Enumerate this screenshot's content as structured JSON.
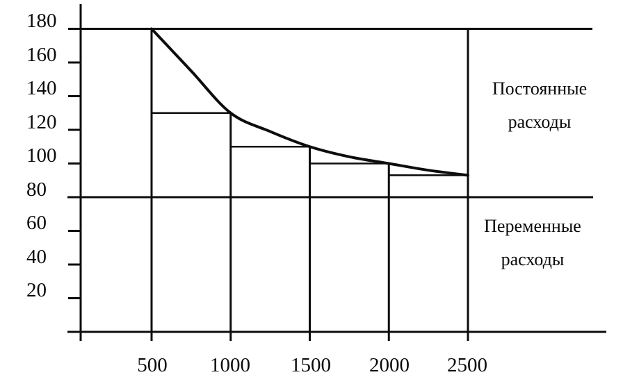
{
  "colors": {
    "ink": "#0d0d0d",
    "background": "#ffffff"
  },
  "chart_data": {
    "type": "line",
    "title": "",
    "xlabel": "",
    "ylabel": "",
    "grid": false,
    "legend": null,
    "xlim": [
      0,
      3400
    ],
    "ylim": [
      0,
      195
    ],
    "x_ticks": [
      "500",
      "1000",
      "1500",
      "2000",
      "2500"
    ],
    "y_ticks": [
      "180",
      "160",
      "140",
      "120",
      "100",
      "80",
      "60",
      "40",
      "20"
    ],
    "key_points": {
      "x": [
        500,
        1000,
        1500,
        2000,
        2500
      ],
      "y": [
        180,
        130,
        110,
        100,
        93
      ]
    },
    "curve": {
      "name": "cost-per-unit-curve",
      "x": [
        500,
        750,
        1000,
        1250,
        1500,
        1750,
        2000,
        2250,
        2500
      ],
      "y": [
        180,
        155,
        130,
        119,
        110,
        104,
        100,
        96,
        93
      ]
    },
    "steps": [
      {
        "x_from": 500,
        "x_to": 1000,
        "level": 130
      },
      {
        "x_from": 1000,
        "x_to": 1500,
        "level": 110
      },
      {
        "x_from": 1500,
        "x_to": 2000,
        "level": 100
      },
      {
        "x_from": 2000,
        "x_to": 2500,
        "level": 93
      }
    ],
    "verticals": [
      {
        "x": 500,
        "top": 180
      },
      {
        "x": 1000,
        "top": 130
      },
      {
        "x": 1500,
        "top": 110
      },
      {
        "x": 2000,
        "top": 100
      },
      {
        "x": 2500,
        "top": 180
      }
    ],
    "hlines": [
      180,
      80
    ],
    "annotations": [
      {
        "name": "fixed-costs",
        "text": "Постоянные расходы",
        "lines": [
          "Постоянные",
          "расходы"
        ],
        "position": "right-upper"
      },
      {
        "name": "variable-costs",
        "text": "Переменные расходы",
        "lines": [
          "Переменные",
          "расходы"
        ],
        "position": "right-lower"
      }
    ]
  }
}
